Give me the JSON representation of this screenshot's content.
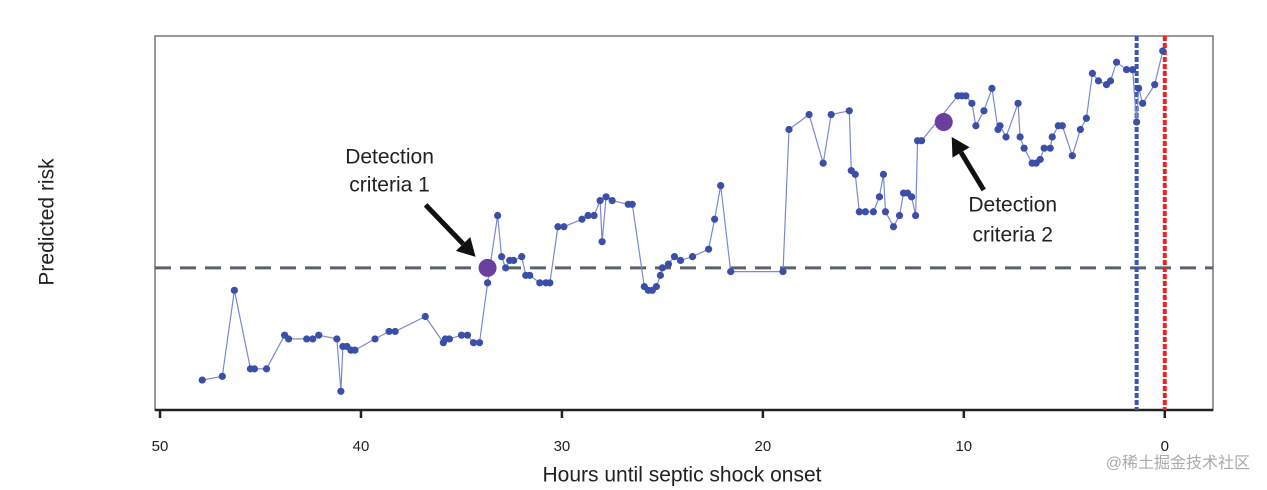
{
  "chart_data": {
    "type": "line",
    "xlabel": "Hours until septic shock onset",
    "ylabel": "Predicted risk",
    "xlim": [
      50.25,
      -2.4
    ],
    "ylim": [
      0,
      1
    ],
    "xticks": [
      50,
      40,
      30,
      20,
      10,
      0
    ],
    "threshold": 0.38,
    "vlines": [
      {
        "x": 1.4,
        "color": "#3a56b8"
      },
      {
        "x": 0,
        "color": "#ee2222"
      }
    ],
    "series": [
      {
        "color": "#3b4fa8",
        "x": [
          47.9,
          46.9,
          46.3,
          45.5,
          45.3,
          44.7,
          43.8,
          43.6,
          42.7,
          42.4,
          42.1,
          41.2,
          41.0,
          40.9,
          40.7,
          40.5,
          40.3,
          39.3,
          38.6,
          38.3,
          36.8,
          35.9,
          35.8,
          35.6,
          35.0,
          34.7,
          34.4,
          34.1,
          33.7,
          33.2,
          33.0,
          32.8,
          32.6,
          32.4,
          32.0,
          31.8,
          31.6,
          31.1,
          30.8,
          30.6,
          30.2,
          29.9,
          29.0,
          28.7,
          28.4,
          28.1,
          28.0,
          27.8,
          27.5,
          26.7,
          26.5,
          25.9,
          25.7,
          25.5,
          25.3,
          25.1,
          25.0,
          24.7,
          24.4,
          24.1,
          23.5,
          22.7,
          22.4,
          22.1,
          21.6,
          19.0,
          18.7,
          17.7,
          17.0,
          16.6,
          15.7,
          15.6,
          15.4,
          15.2,
          14.9,
          14.5,
          14.2,
          14.0,
          13.9,
          13.5,
          13.2,
          13.0,
          12.8,
          12.6,
          12.4,
          12.3,
          12.1,
          10.3,
          10.1,
          9.9,
          9.6,
          9.4,
          9.0,
          8.6,
          8.3,
          8.2,
          7.9,
          7.3,
          7.2,
          7.0,
          6.6,
          6.4,
          6.2,
          6.0,
          5.7,
          5.6,
          5.3,
          5.1,
          4.6,
          4.2,
          3.9,
          3.6,
          3.3,
          2.9,
          2.7,
          2.4,
          1.9,
          1.6,
          1.4,
          1.3,
          1.1,
          0.5,
          0.1
        ],
        "values": [
          0.08,
          0.09,
          0.32,
          0.11,
          0.11,
          0.11,
          0.2,
          0.19,
          0.19,
          0.19,
          0.2,
          0.19,
          0.05,
          0.17,
          0.17,
          0.16,
          0.16,
          0.19,
          0.21,
          0.21,
          0.25,
          0.18,
          0.19,
          0.19,
          0.2,
          0.2,
          0.18,
          0.18,
          0.34,
          0.52,
          0.41,
          0.38,
          0.4,
          0.4,
          0.41,
          0.36,
          0.36,
          0.34,
          0.34,
          0.34,
          0.49,
          0.49,
          0.51,
          0.52,
          0.52,
          0.56,
          0.45,
          0.57,
          0.56,
          0.55,
          0.55,
          0.33,
          0.32,
          0.32,
          0.33,
          0.36,
          0.38,
          0.39,
          0.41,
          0.4,
          0.41,
          0.43,
          0.51,
          0.6,
          0.37,
          0.37,
          0.75,
          0.79,
          0.66,
          0.79,
          0.8,
          0.64,
          0.63,
          0.53,
          0.53,
          0.53,
          0.57,
          0.63,
          0.53,
          0.49,
          0.52,
          0.58,
          0.58,
          0.57,
          0.52,
          0.72,
          0.72,
          0.84,
          0.84,
          0.84,
          0.82,
          0.76,
          0.8,
          0.86,
          0.75,
          0.76,
          0.73,
          0.82,
          0.73,
          0.7,
          0.66,
          0.66,
          0.67,
          0.7,
          0.7,
          0.73,
          0.76,
          0.76,
          0.68,
          0.75,
          0.78,
          0.9,
          0.88,
          0.87,
          0.88,
          0.93,
          0.91,
          0.91,
          0.77,
          0.86,
          0.82,
          0.87,
          0.96
        ]
      }
    ],
    "annotations": [
      {
        "text": [
          "Detection",
          "criteria 1"
        ],
        "x": 33.7,
        "y": 0.38,
        "color": "#6b3fa0"
      },
      {
        "text": [
          "Detection",
          "criteria 2"
        ],
        "x": 11.0,
        "y": 0.77,
        "color": "#6b3fa0"
      }
    ]
  },
  "watermark": "@稀土掘金技术社区"
}
